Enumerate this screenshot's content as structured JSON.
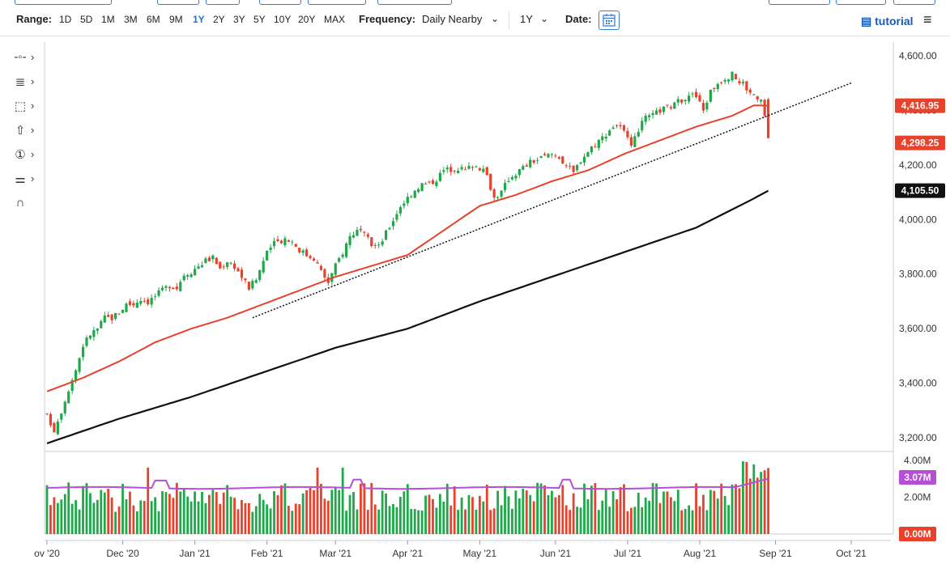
{
  "toolbar": {
    "range_label": "Range:",
    "ranges": [
      "1D",
      "5D",
      "1M",
      "3M",
      "6M",
      "9M",
      "1Y",
      "2Y",
      "3Y",
      "5Y",
      "10Y",
      "20Y",
      "MAX"
    ],
    "active_range": "1Y",
    "frequency_label": "Frequency:",
    "frequency_value": "Daily Nearby",
    "period_value": "1Y",
    "date_label": "Date:",
    "tutorial_label": "tutorial",
    "chevron": "⌄"
  },
  "tools": [
    {
      "icon": "crosshair-icon",
      "glyph": "-◦-"
    },
    {
      "icon": "text-list-icon",
      "glyph": "≣"
    },
    {
      "icon": "rectangle-select-icon",
      "glyph": "⬚"
    },
    {
      "icon": "up-arrow-icon",
      "glyph": "⇧"
    },
    {
      "icon": "circle-one-icon",
      "glyph": "①"
    },
    {
      "icon": "sliders-icon",
      "glyph": "⚌"
    },
    {
      "icon": "magnet-icon",
      "glyph": "∩"
    }
  ],
  "chart_data": {
    "type": "candlestick",
    "price_axis": {
      "min": 3150,
      "max": 4650,
      "ticks": [
        "4,600.00",
        "4,400.00",
        "4,200.00",
        "4,000.00",
        "3,800.00",
        "3,600.00",
        "3,400.00",
        "3,200.00"
      ],
      "tick_values": [
        4600,
        4400,
        4200,
        4000,
        3800,
        3600,
        3400,
        3200
      ]
    },
    "volume_axis": {
      "min": 0,
      "max": 4.3,
      "ticks": [
        "4.00M",
        "2.00M"
      ],
      "tick_values": [
        4.0,
        2.0
      ]
    },
    "x_labels": [
      "ov '20",
      "Dec '20",
      "Jan '21",
      "Feb '21",
      "Mar '21",
      "Apr '21",
      "May '21",
      "Jun '21",
      "Jul '21",
      "Aug '21",
      "Sep '21",
      "Oct '21"
    ],
    "x_label_positions_day": [
      0,
      21,
      41,
      61,
      80,
      100,
      120,
      141,
      161,
      181,
      202,
      223
    ],
    "n_days": 235,
    "last_index": 200,
    "price_anchors": [
      [
        0,
        3280
      ],
      [
        2,
        3230
      ],
      [
        4,
        3300
      ],
      [
        6,
        3380
      ],
      [
        8,
        3450
      ],
      [
        10,
        3540
      ],
      [
        12,
        3580
      ],
      [
        14,
        3600
      ],
      [
        16,
        3640
      ],
      [
        18,
        3640
      ],
      [
        20,
        3660
      ],
      [
        22,
        3690
      ],
      [
        24,
        3690
      ],
      [
        26,
        3710
      ],
      [
        28,
        3700
      ],
      [
        30,
        3720
      ],
      [
        32,
        3740
      ],
      [
        34,
        3760
      ],
      [
        36,
        3750
      ],
      [
        38,
        3800
      ],
      [
        40,
        3810
      ],
      [
        42,
        3830
      ],
      [
        44,
        3850
      ],
      [
        46,
        3860
      ],
      [
        48,
        3820
      ],
      [
        50,
        3850
      ],
      [
        52,
        3830
      ],
      [
        54,
        3790
      ],
      [
        56,
        3750
      ],
      [
        58,
        3780
      ],
      [
        60,
        3850
      ],
      [
        62,
        3900
      ],
      [
        64,
        3920
      ],
      [
        66,
        3930
      ],
      [
        68,
        3920
      ],
      [
        70,
        3890
      ],
      [
        72,
        3870
      ],
      [
        74,
        3860
      ],
      [
        76,
        3810
      ],
      [
        78,
        3770
      ],
      [
        80,
        3830
      ],
      [
        82,
        3880
      ],
      [
        84,
        3940
      ],
      [
        86,
        3960
      ],
      [
        88,
        3940
      ],
      [
        90,
        3910
      ],
      [
        92,
        3900
      ],
      [
        94,
        3950
      ],
      [
        96,
        4000
      ],
      [
        98,
        4050
      ],
      [
        100,
        4080
      ],
      [
        102,
        4110
      ],
      [
        104,
        4130
      ],
      [
        106,
        4130
      ],
      [
        108,
        4150
      ],
      [
        110,
        4180
      ],
      [
        112,
        4185
      ],
      [
        114,
        4190
      ],
      [
        116,
        4180
      ],
      [
        118,
        4200
      ],
      [
        120,
        4190
      ],
      [
        122,
        4160
      ],
      [
        124,
        4080
      ],
      [
        126,
        4100
      ],
      [
        128,
        4150
      ],
      [
        130,
        4170
      ],
      [
        132,
        4190
      ],
      [
        134,
        4210
      ],
      [
        136,
        4220
      ],
      [
        138,
        4230
      ],
      [
        140,
        4240
      ],
      [
        142,
        4230
      ],
      [
        144,
        4200
      ],
      [
        146,
        4170
      ],
      [
        148,
        4220
      ],
      [
        150,
        4250
      ],
      [
        152,
        4280
      ],
      [
        154,
        4300
      ],
      [
        156,
        4330
      ],
      [
        158,
        4350
      ],
      [
        160,
        4320
      ],
      [
        162,
        4260
      ],
      [
        164,
        4330
      ],
      [
        166,
        4370
      ],
      [
        168,
        4380
      ],
      [
        170,
        4400
      ],
      [
        172,
        4410
      ],
      [
        174,
        4420
      ],
      [
        176,
        4440
      ],
      [
        178,
        4460
      ],
      [
        180,
        4450
      ],
      [
        182,
        4400
      ],
      [
        184,
        4470
      ],
      [
        186,
        4500
      ],
      [
        188,
        4520
      ],
      [
        190,
        4530
      ],
      [
        192,
        4510
      ],
      [
        194,
        4480
      ],
      [
        196,
        4460
      ],
      [
        198,
        4440
      ],
      [
        200,
        4300
      ]
    ],
    "last_price": 4298.25,
    "sma50_anchors": [
      [
        0,
        3370
      ],
      [
        10,
        3420
      ],
      [
        20,
        3480
      ],
      [
        30,
        3550
      ],
      [
        40,
        3600
      ],
      [
        50,
        3640
      ],
      [
        60,
        3690
      ],
      [
        70,
        3740
      ],
      [
        80,
        3790
      ],
      [
        90,
        3830
      ],
      [
        100,
        3870
      ],
      [
        110,
        3960
      ],
      [
        120,
        4050
      ],
      [
        130,
        4090
      ],
      [
        140,
        4140
      ],
      [
        150,
        4180
      ],
      [
        160,
        4240
      ],
      [
        170,
        4290
      ],
      [
        180,
        4340
      ],
      [
        190,
        4380
      ],
      [
        196,
        4418
      ],
      [
        200,
        4416.95
      ]
    ],
    "sma50_last": 4416.95,
    "sma200_anchors": [
      [
        0,
        3180
      ],
      [
        20,
        3270
      ],
      [
        40,
        3350
      ],
      [
        60,
        3440
      ],
      [
        80,
        3530
      ],
      [
        100,
        3600
      ],
      [
        120,
        3700
      ],
      [
        140,
        3790
      ],
      [
        160,
        3880
      ],
      [
        180,
        3970
      ],
      [
        195,
        4070
      ],
      [
        200,
        4105.5
      ]
    ],
    "sma200_last": 4105.5,
    "trendline": {
      "from": [
        57,
        3640
      ],
      "to": [
        223,
        4500
      ]
    },
    "volume_avg_last": 3.07,
    "volume_zero": 0.0,
    "tags": {
      "sma50": "4,416.95",
      "last": "4,298.25",
      "sma200": "4,105.50",
      "vol_avg": "3.07M",
      "vol_zero": "0.00M"
    },
    "colors": {
      "up": "#1fa84a",
      "down": "#e8412c",
      "sma50": "#e8412c",
      "sma200": "#111111",
      "volavg": "#b44fd6",
      "tag_vol": "#b44fd6"
    }
  }
}
